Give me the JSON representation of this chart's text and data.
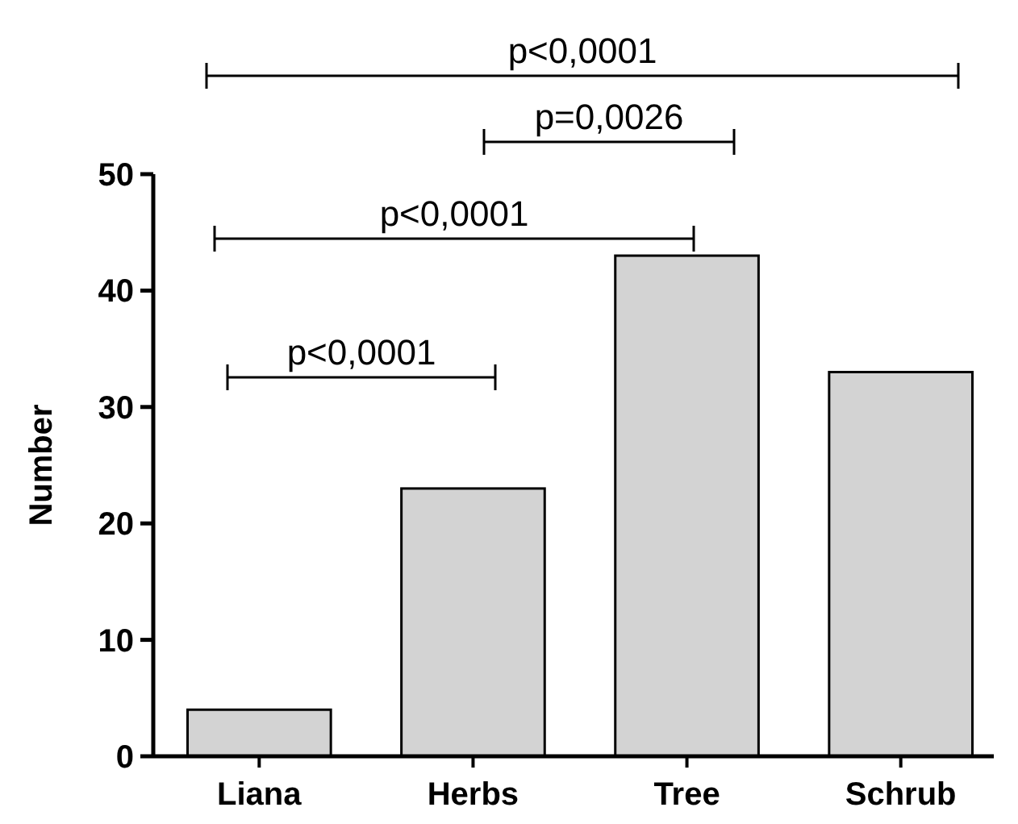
{
  "chart_data": {
    "type": "bar",
    "ylabel": "Number",
    "categories": [
      "Liana",
      "Herbs",
      "Tree",
      "Schrub"
    ],
    "values": [
      4,
      23,
      43,
      33
    ],
    "color": "#d3d3d3",
    "ylim": [
      0,
      50
    ],
    "yticks": [
      0,
      10,
      20,
      30,
      40,
      50
    ],
    "grid": false,
    "annotations": [
      "p<0,0001",
      "p=0,0026",
      "p<0,0001",
      "p<0,0001"
    ]
  }
}
